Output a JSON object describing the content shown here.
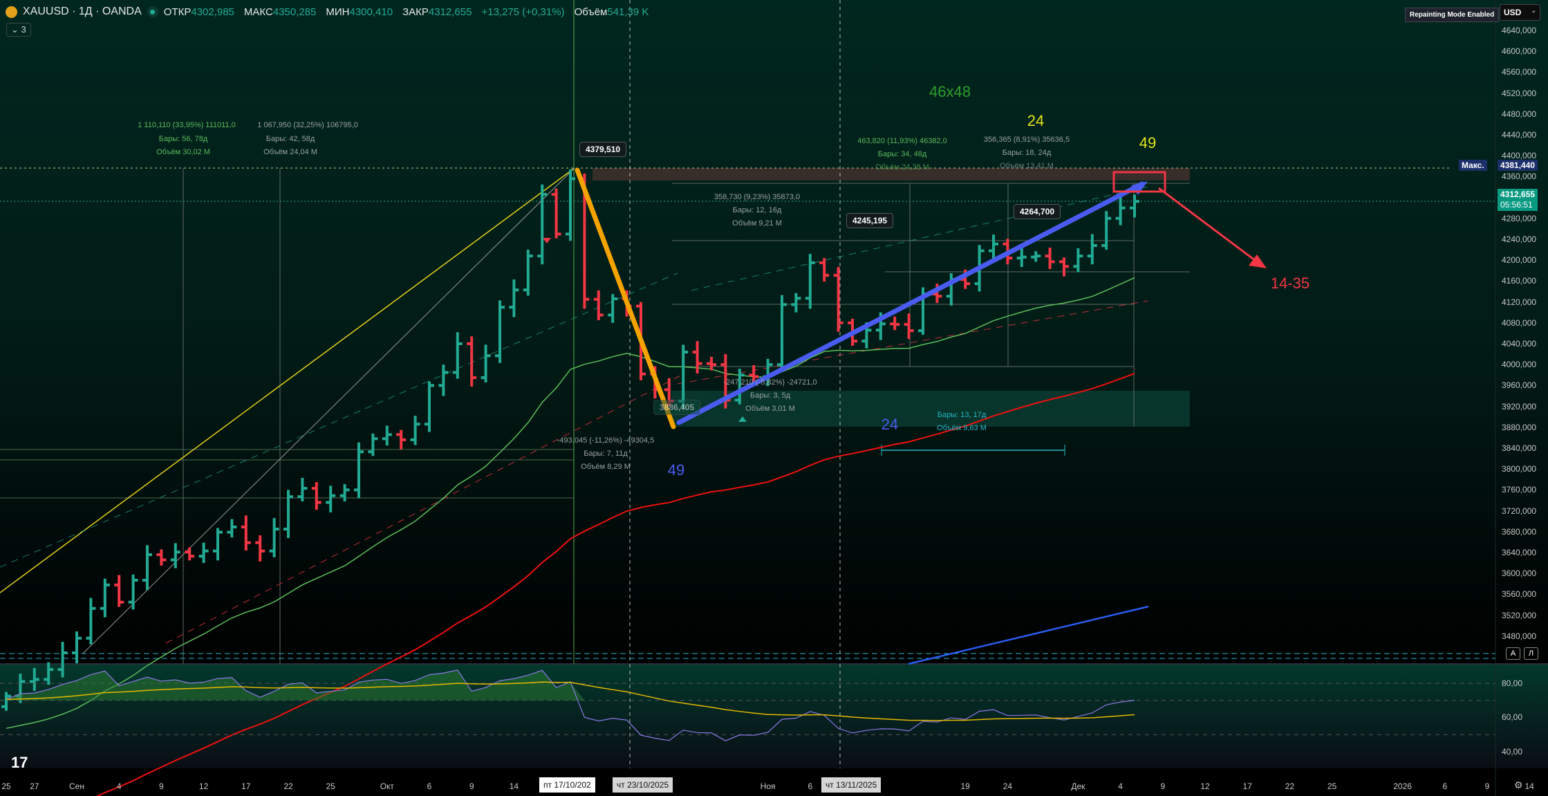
{
  "header": {
    "symbol": "XAUUSD · 1Д · OANDA",
    "open_label": "ОТКР",
    "open": "4302,985",
    "high_label": "МАКС",
    "high": "4350,285",
    "low_label": "МИН",
    "low": "4300,410",
    "close_label": "ЗАКР",
    "close": "4312,655",
    "change": "+13,275 (+0,31%)",
    "volume_label": "Объём",
    "volume": "541,39 K",
    "collapse": "⌄ 3"
  },
  "toolbar": {
    "repainting": "Repainting Mode Enabled",
    "currency": "USD"
  },
  "price_axis": {
    "ticks": [
      "4640,000",
      "4600,000",
      "4560,000",
      "4520,000",
      "4480,000",
      "4440,000",
      "4400,000",
      "4360,000",
      "4280,000",
      "4240,000",
      "4200,000",
      "4160,000",
      "4120,000",
      "4080,000",
      "4040,000",
      "4000,000",
      "3960,000",
      "3920,000",
      "3880,000",
      "3840,000",
      "3800,000",
      "3760,000",
      "3720,000",
      "3680,000",
      "3640,000",
      "3600,000",
      "3560,000",
      "3520,000",
      "3480,000"
    ],
    "max_label": "Макс.",
    "max_value": "4381,440",
    "last_price": "4312,655",
    "countdown": "05:56:51",
    "auto": "A",
    "log": "Л"
  },
  "rsi_axis": [
    "80,00",
    "60,00",
    "40,00"
  ],
  "time_axis": {
    "labels": [
      [
        "25",
        0
      ],
      [
        "27",
        2
      ],
      [
        "Сен",
        5
      ],
      [
        "4",
        8
      ],
      [
        "9",
        11
      ],
      [
        "12",
        14
      ],
      [
        "17",
        17
      ],
      [
        "22",
        20
      ],
      [
        "25",
        23
      ],
      [
        "Окт",
        27
      ],
      [
        "6",
        30
      ],
      [
        "9",
        33
      ],
      [
        "14",
        36
      ],
      [
        "Ноя",
        54
      ],
      [
        "6",
        57
      ],
      [
        "19",
        68
      ],
      [
        "24",
        71
      ],
      [
        "Дек",
        76
      ],
      [
        "4",
        79
      ],
      [
        "9",
        82
      ],
      [
        "12",
        85
      ],
      [
        "17",
        88
      ],
      [
        "22",
        91
      ],
      [
        "25",
        94
      ],
      [
        "2026",
        99
      ],
      [
        "6",
        102
      ],
      [
        "9",
        105
      ],
      [
        "14",
        108
      ],
      [
        "1",
        111
      ]
    ],
    "highlight1": "пт 17/10/202",
    "highlight2": "чт 23/10/2025",
    "highlight3": "чт 13/11/2025"
  },
  "colors": {
    "up": "#22ab94",
    "down": "#f23645",
    "bg": "#00231c"
  },
  "candles": {
    "closes": [
      3365,
      3393,
      3397,
      3416,
      3448,
      3476,
      3533,
      3578,
      3545,
      3587,
      3636,
      3626,
      3641,
      3633,
      3643,
      3679,
      3689,
      3659,
      3643,
      3685,
      3747,
      3763,
      3736,
      3749,
      3760,
      3833,
      3858,
      3866,
      3856,
      3886,
      3960,
      3985,
      4040,
      3975,
      4017,
      4110,
      4143,
      4208,
      4326,
      4250,
      4356,
      4125,
      4095,
      4126,
      4112,
      3982,
      3952,
      3930,
      4024,
      4002,
      4000,
      3932,
      3980,
      3977,
      4000,
      4115,
      4127,
      4195,
      4171,
      4080,
      4045,
      4066,
      4078,
      4077,
      4065,
      4135,
      4131,
      4163,
      4155,
      4218,
      4231,
      4204,
      4206,
      4208,
      4197,
      4188,
      4208,
      4228,
      4280,
      4300,
      4312.655
    ]
  },
  "annotations": {
    "m1a": "1 110,110 (33,95%) 111011,0",
    "m1b": "1 067,950 (32,25%) 106795,0",
    "m1c": "Бары: 56, 78д",
    "m1d": "Бары: 42, 58д",
    "m1e": "Объём 30,02 M",
    "m1f": "Объём 24,04 M",
    "m2a": "463,820 (11,93%) 46382,0",
    "m2b": "Бары: 34, 48д",
    "m2c": "Объём 24,38 M",
    "m3a": "356,365 (8,91%) 35636,5",
    "m3b": "Бары: 18, 24д",
    "m3c": "Объём 13,41 M",
    "m4a": "358,730 (9,23%) 35873,0",
    "m4b": "Бары: 12, 16д",
    "m4c": "Объём 9,21 M",
    "m5a": "-247,210 (-5,82%) -24721,0",
    "m5b": "Бары: 3, 5д",
    "m5c": "Объём 3,01 M",
    "m6a": "-493,045 (-11,26%) -49304,5",
    "m6b": "Бары: 7, 11д",
    "m6c": "Объём 8,29 M",
    "m7a": "Бары: 13, 17д",
    "m7b": "Объём 9,63 M",
    "p1": "4379,510",
    "p2": "4245,195",
    "p3": "4264,700",
    "p4": "3886,405",
    "t1": "46x48",
    "t2": "24",
    "t3": "49",
    "t4": "14-35",
    "t5": "49",
    "t6": "24"
  }
}
